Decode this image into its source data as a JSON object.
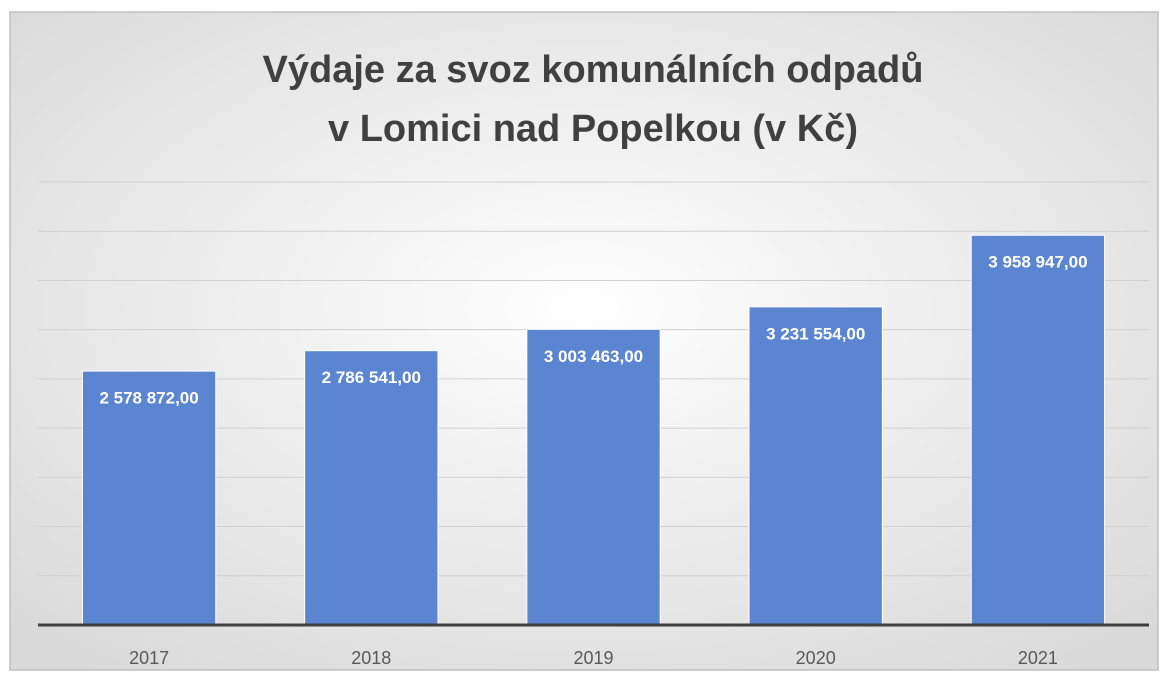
{
  "chart_data": {
    "type": "bar",
    "title": [
      "Výdaje za svoz komunálních odpadů",
      "v Lomici nad Popelkou (v Kč)"
    ],
    "categories": [
      "2017",
      "2018",
      "2019",
      "2020",
      "2021"
    ],
    "values": [
      2578872,
      2786541,
      3003463,
      3231554,
      3958947
    ],
    "value_labels": [
      "2 578 872,00",
      "2 786 541,00",
      "3 003 463,00",
      "3 231 554,00",
      "3 958 947,00"
    ],
    "color": "#5b85d0",
    "ylim": [
      0,
      4500000
    ],
    "yticks": [
      0,
      500000,
      1000000,
      1500000,
      2000000,
      2500000,
      3000000,
      3500000,
      4000000,
      4500000
    ],
    "grid": true
  }
}
